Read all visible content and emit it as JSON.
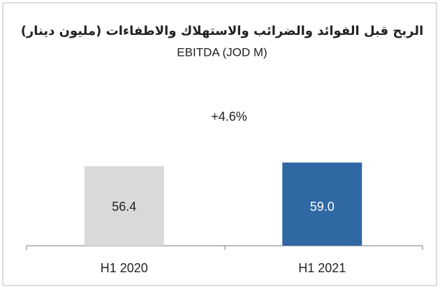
{
  "chart_data": {
    "type": "bar",
    "title": "الربح قبل الفوائد والضرائب والاستهلاك والاطفاءات (مليون دينار)",
    "subtitle": "EBITDA (JOD M)",
    "annotation": "+4.6%",
    "categories": [
      "H1 2020",
      "H1 2021"
    ],
    "values": [
      56.4,
      59.0
    ],
    "value_labels": [
      "56.4",
      "59.0"
    ],
    "colors": [
      "#d9d9d9",
      "#2f68a3"
    ],
    "value_label_colors": [
      "#222222",
      "#ffffff"
    ]
  }
}
